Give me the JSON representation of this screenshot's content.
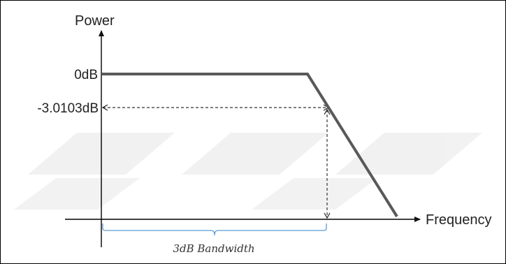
{
  "diagram": {
    "y_axis_label": "Power",
    "x_axis_label": "Frequency",
    "level_0db_label": "0dB",
    "level_3db_label": "-3.0103dB",
    "bandwidth_label": "3dB Bandwidth",
    "colors": {
      "response_curve": "#595959",
      "axes": "#000000",
      "guides": "#333333",
      "bandwidth_brace": "#5b9bd5"
    }
  }
}
